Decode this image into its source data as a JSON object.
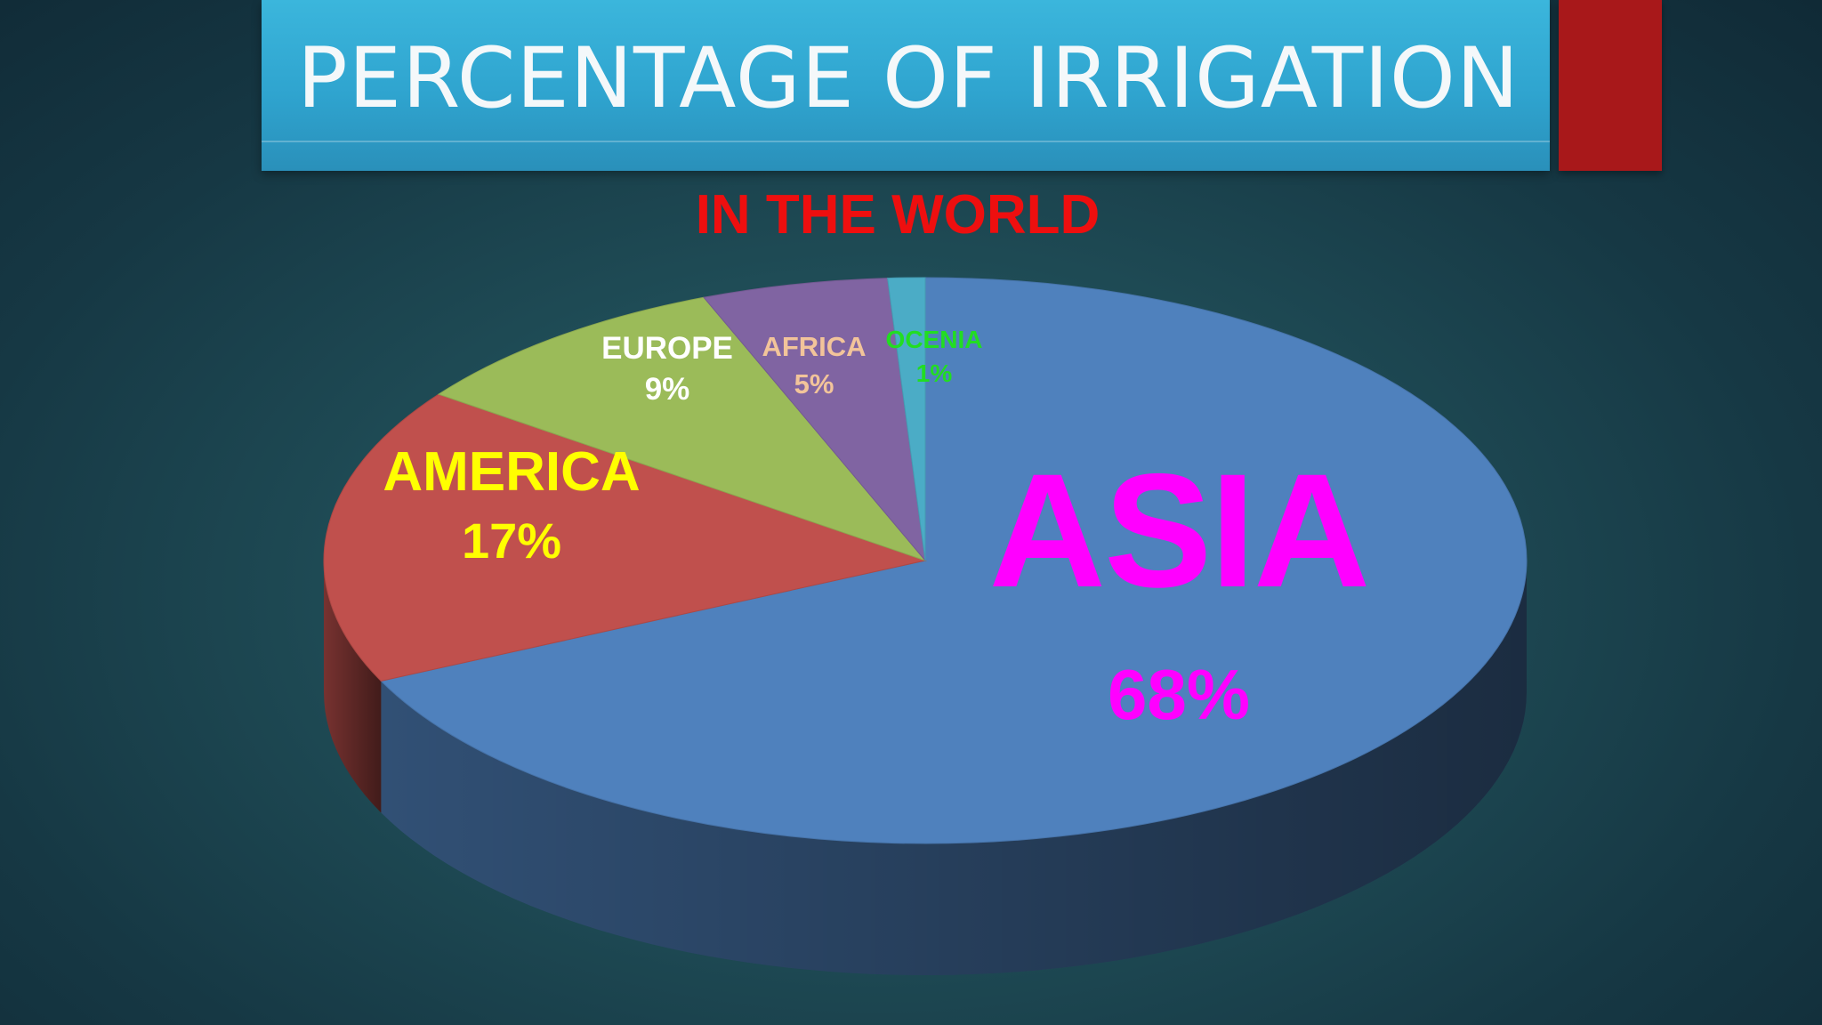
{
  "slide": {
    "title": "PERCENTAGE OF IRRIGATION",
    "title_color": "#f4f8fa",
    "title_bar_color": "#33aad5",
    "accent_color": "#a8181a"
  },
  "chart_data": {
    "type": "pie",
    "subtitle": "IN THE WORLD",
    "subtitle_color": "#ee0f0f",
    "style": "3d",
    "slices": [
      {
        "name": "ASIA",
        "label": "68%",
        "value": 68,
        "color": "#4f81bd",
        "label_color": "#ff00ff"
      },
      {
        "name": "AMERICA",
        "label": "17%",
        "value": 17,
        "color": "#c0504d",
        "label_color": "#ffff00"
      },
      {
        "name": "EUROPE",
        "label": "9%",
        "value": 9,
        "color": "#9bbb59",
        "label_color": "#ffffff"
      },
      {
        "name": "AFRICA",
        "label": "5%",
        "value": 5,
        "color": "#8064a2",
        "label_color": "#f2c49a"
      },
      {
        "name": "OCENIA",
        "label": "1%",
        "value": 1,
        "color": "#4bacc6",
        "label_color": "#22dd22"
      }
    ]
  }
}
